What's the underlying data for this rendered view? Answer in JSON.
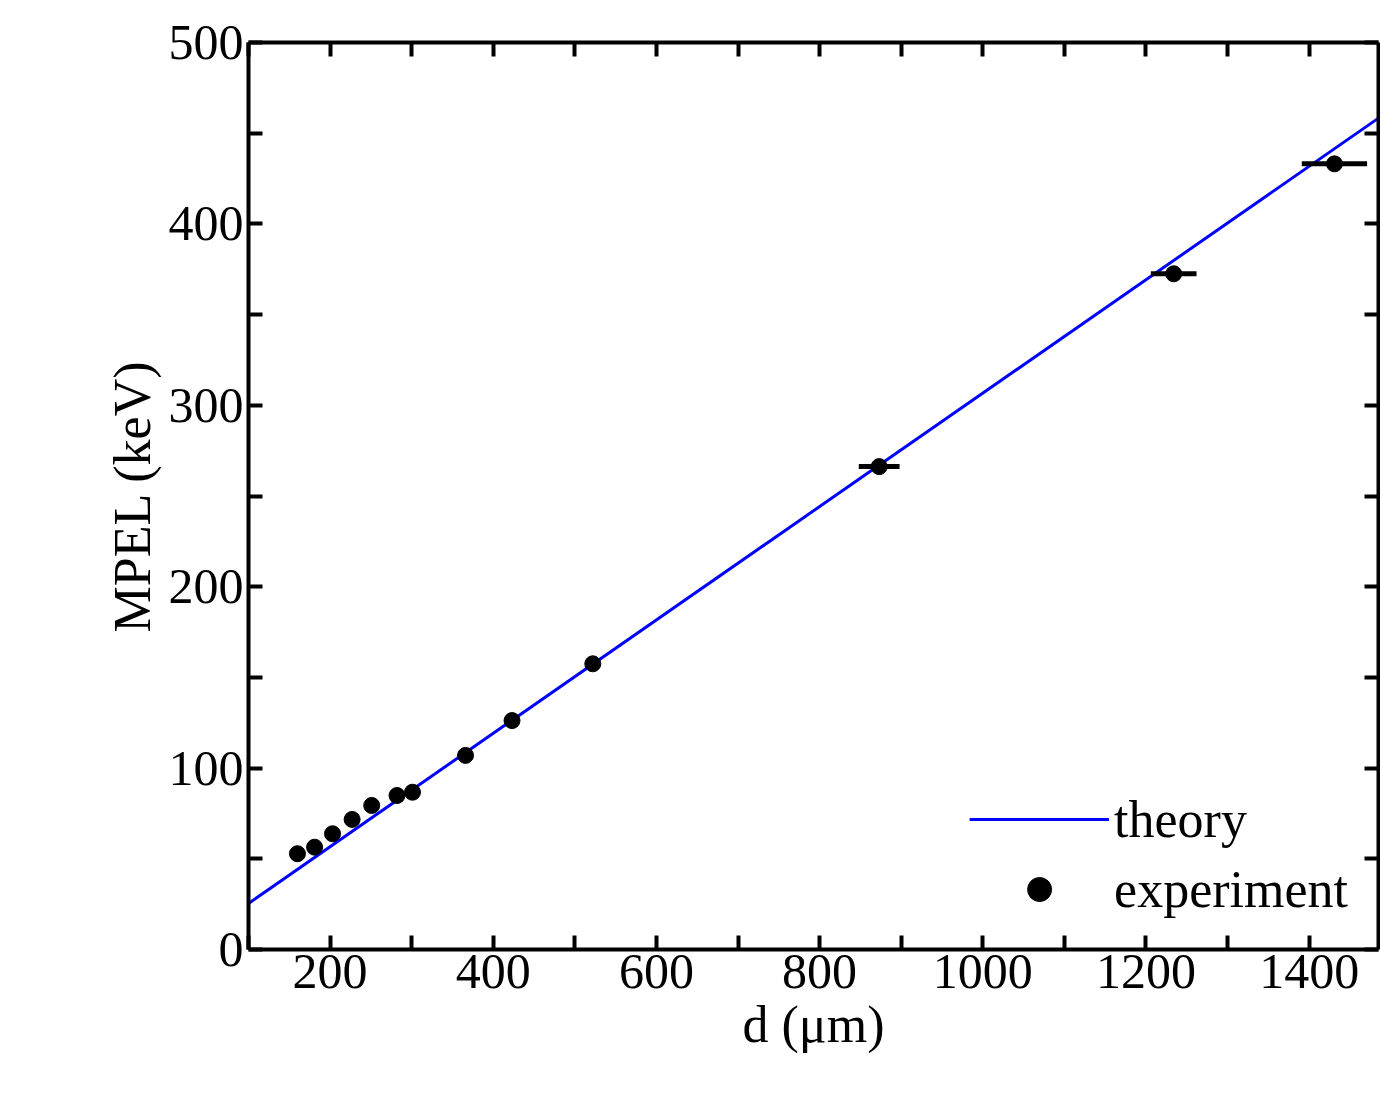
{
  "chart_data": {
    "type": "scatter",
    "xlabel": "d (μm)",
    "ylabel": "MPEL (keV)",
    "series": [
      {
        "name": "theory",
        "type": "line",
        "color": "#0000ff",
        "x": [
          100,
          1485
        ],
        "values": [
          25.4,
          458.3
        ]
      },
      {
        "name": "experiment",
        "color": "#000000",
        "marker": "circle",
        "x": [
          160,
          181,
          203,
          227,
          251,
          282,
          301,
          366,
          423,
          522,
          873,
          1234,
          1431
        ],
        "values": [
          52.8,
          56.4,
          63.8,
          71.7,
          79.4,
          84.9,
          86.7,
          107,
          126.2,
          157.5,
          266.2,
          372.5,
          433.1
        ],
        "xerrors": [
          null,
          null,
          null,
          null,
          null,
          null,
          null,
          null,
          null,
          null,
          25,
          28,
          40
        ]
      }
    ],
    "xlim": [
      100,
      1485
    ],
    "ylim": [
      0,
      500
    ],
    "xticks": [
      {
        "value": 100,
        "label": null
      },
      200,
      {
        "value": 300,
        "label": null
      },
      400,
      {
        "value": 500,
        "label": null
      },
      600,
      {
        "value": 700,
        "label": null
      },
      800,
      {
        "value": 900,
        "label": null
      },
      1000,
      {
        "value": 1100,
        "label": null
      },
      1200,
      {
        "value": 1300,
        "label": null
      },
      1400
    ],
    "yticks": [
      0,
      {
        "value": 50,
        "label": null
      },
      100,
      {
        "value": 150,
        "label": null
      },
      200,
      {
        "value": 250,
        "label": null
      },
      300,
      {
        "value": 350,
        "label": null
      },
      400,
      {
        "value": 450,
        "label": null
      },
      500
    ],
    "grid": false,
    "legend": "bottom right"
  }
}
